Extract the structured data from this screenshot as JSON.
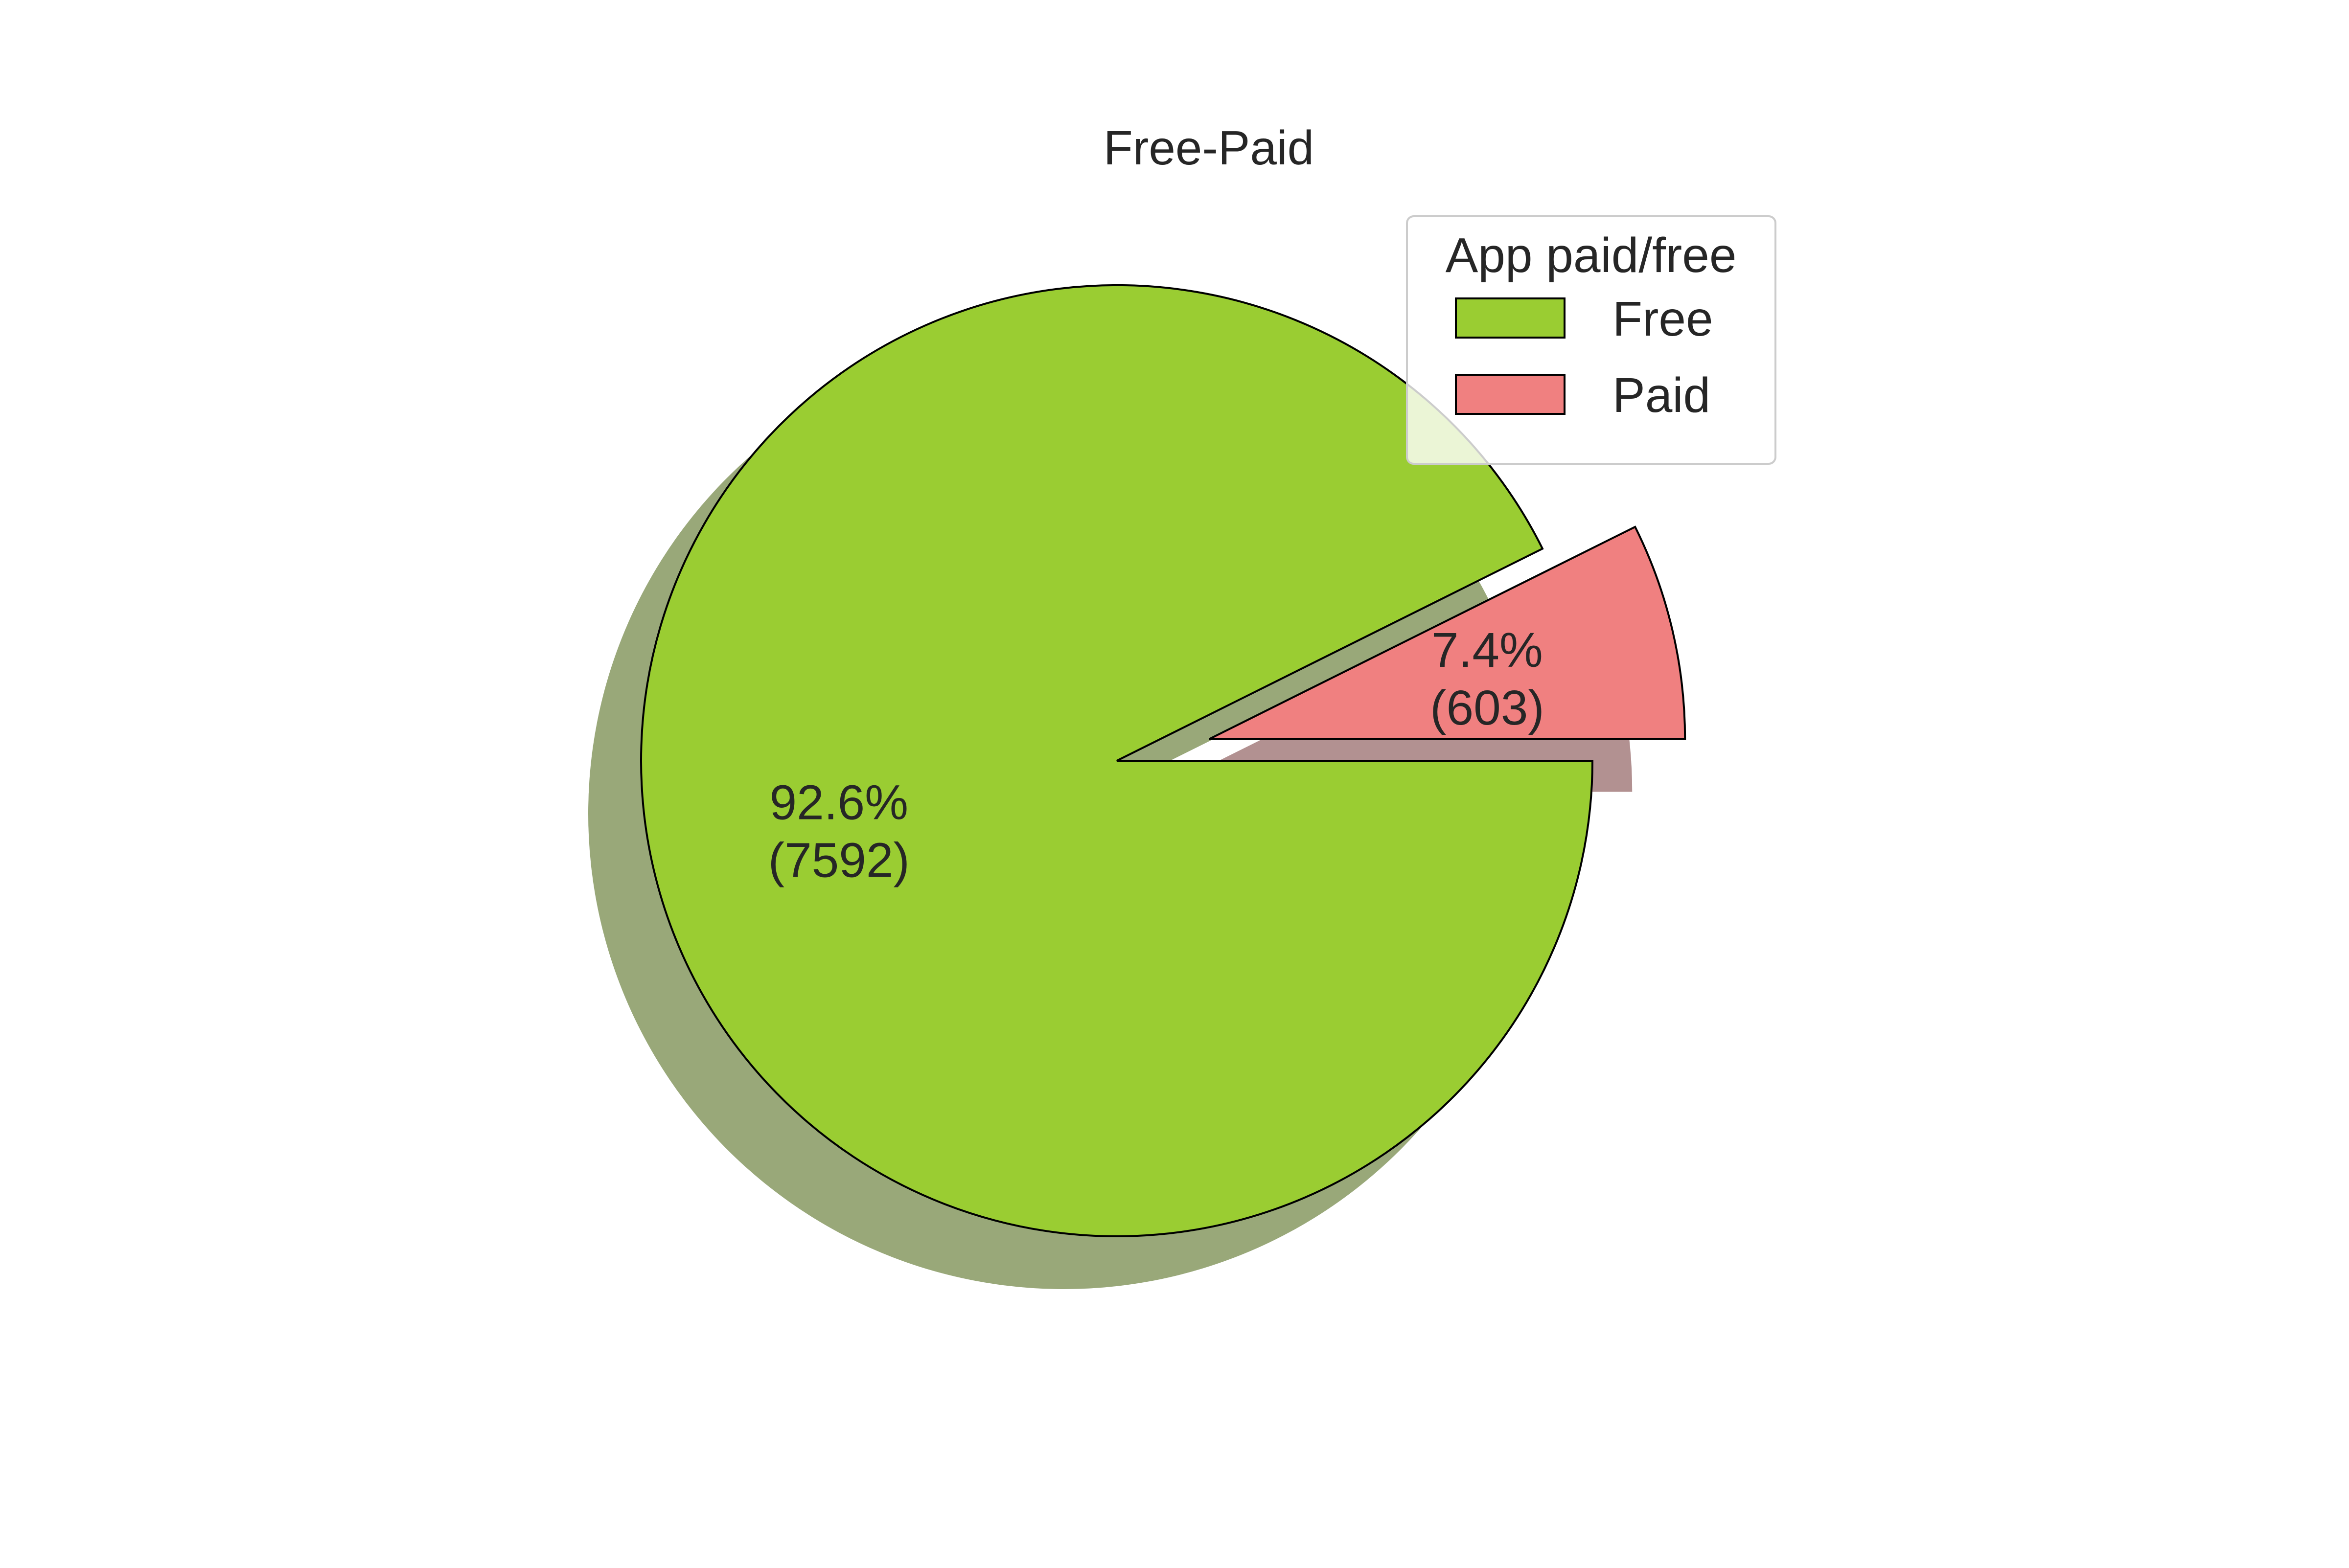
{
  "chart_data": {
    "type": "pie",
    "title": "Free-Paid",
    "slices": [
      {
        "label": "Free",
        "value": 7592,
        "percent_label": "92.6%",
        "count_label": "(7592)",
        "color": "#9acd32",
        "exploded": false
      },
      {
        "label": "Paid",
        "value": 603,
        "percent_label": "7.4%",
        "count_label": "(603)",
        "color": "#f08080",
        "exploded": true
      }
    ],
    "start_angle_deg": 0,
    "direction": "clockwise",
    "shadow": true,
    "edge_color": "#000000",
    "legend": {
      "title": "App paid/free",
      "position": "top-right",
      "entries": [
        "Free",
        "Paid"
      ]
    }
  }
}
